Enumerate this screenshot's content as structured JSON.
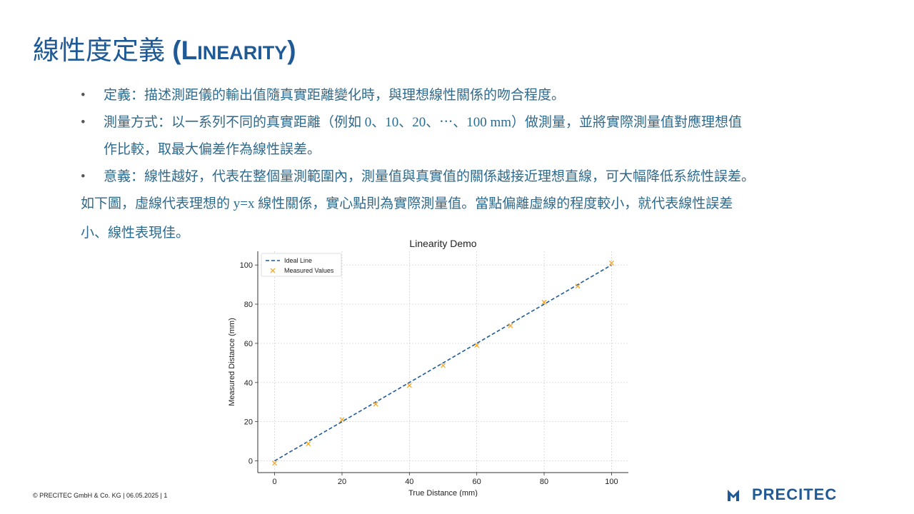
{
  "slide": {
    "title_cjk": "線性度定義",
    "title_latin_open": "(L",
    "title_latin_sc": "INEARITY",
    "title_latin_close": ")"
  },
  "bullets": [
    {
      "marker": "•",
      "text": "定義：描述測距儀的輸出值隨真實距離變化時，與理想線性關係的吻合程度。"
    },
    {
      "marker": "•",
      "text": "測量方式：以一系列不同的真實距離（例如 0、10、20、⋯、100 mm）做測量，並將實際測量值對應理想值"
    },
    {
      "marker": "",
      "text": "作比較，取最大偏差作為線性誤差。"
    },
    {
      "marker": "•",
      "text": "意義：線性越好，代表在整個量測範圍內，測量值與真實值的關係越接近理想直線，可大幅降低系統性誤差。"
    }
  ],
  "paragraph": [
    "如下圖，虛線代表理想的 y=x 線性關係，實心點則為實際測量值。當點偏離虛線的程度較小，就代表線性誤差",
    "小、線性表現佳。"
  ],
  "chart_data": {
    "type": "scatter",
    "title": "Linearity Demo",
    "xlabel": "True Distance (mm)",
    "ylabel": "Measured Distance (mm)",
    "xlim": [
      -5,
      105
    ],
    "ylim": [
      -6,
      107
    ],
    "xticks": [
      0,
      20,
      40,
      60,
      80,
      100
    ],
    "yticks": [
      0,
      20,
      40,
      60,
      80,
      100
    ],
    "grid": true,
    "legend_position": "top-left",
    "series": [
      {
        "name": "Ideal Line",
        "kind": "line",
        "style": "dashed",
        "color": "#1f5a96",
        "x": [
          0,
          100
        ],
        "y": [
          0,
          100
        ]
      },
      {
        "name": "Measured Values",
        "kind": "scatter",
        "marker": "x",
        "color": "#f5a623",
        "x": [
          0,
          10,
          20,
          30,
          40,
          50,
          60,
          70,
          80,
          90,
          100
        ],
        "y": [
          -1.2,
          8.7,
          21,
          29,
          38.5,
          48.7,
          59,
          69,
          81,
          89.2,
          101
        ]
      }
    ]
  },
  "footer": {
    "text": "© PRECITEC GmbH & Co. KG | 06.05.2025 | 1"
  },
  "logo": {
    "text": "PRECITEC",
    "color": "#1f5a96"
  }
}
